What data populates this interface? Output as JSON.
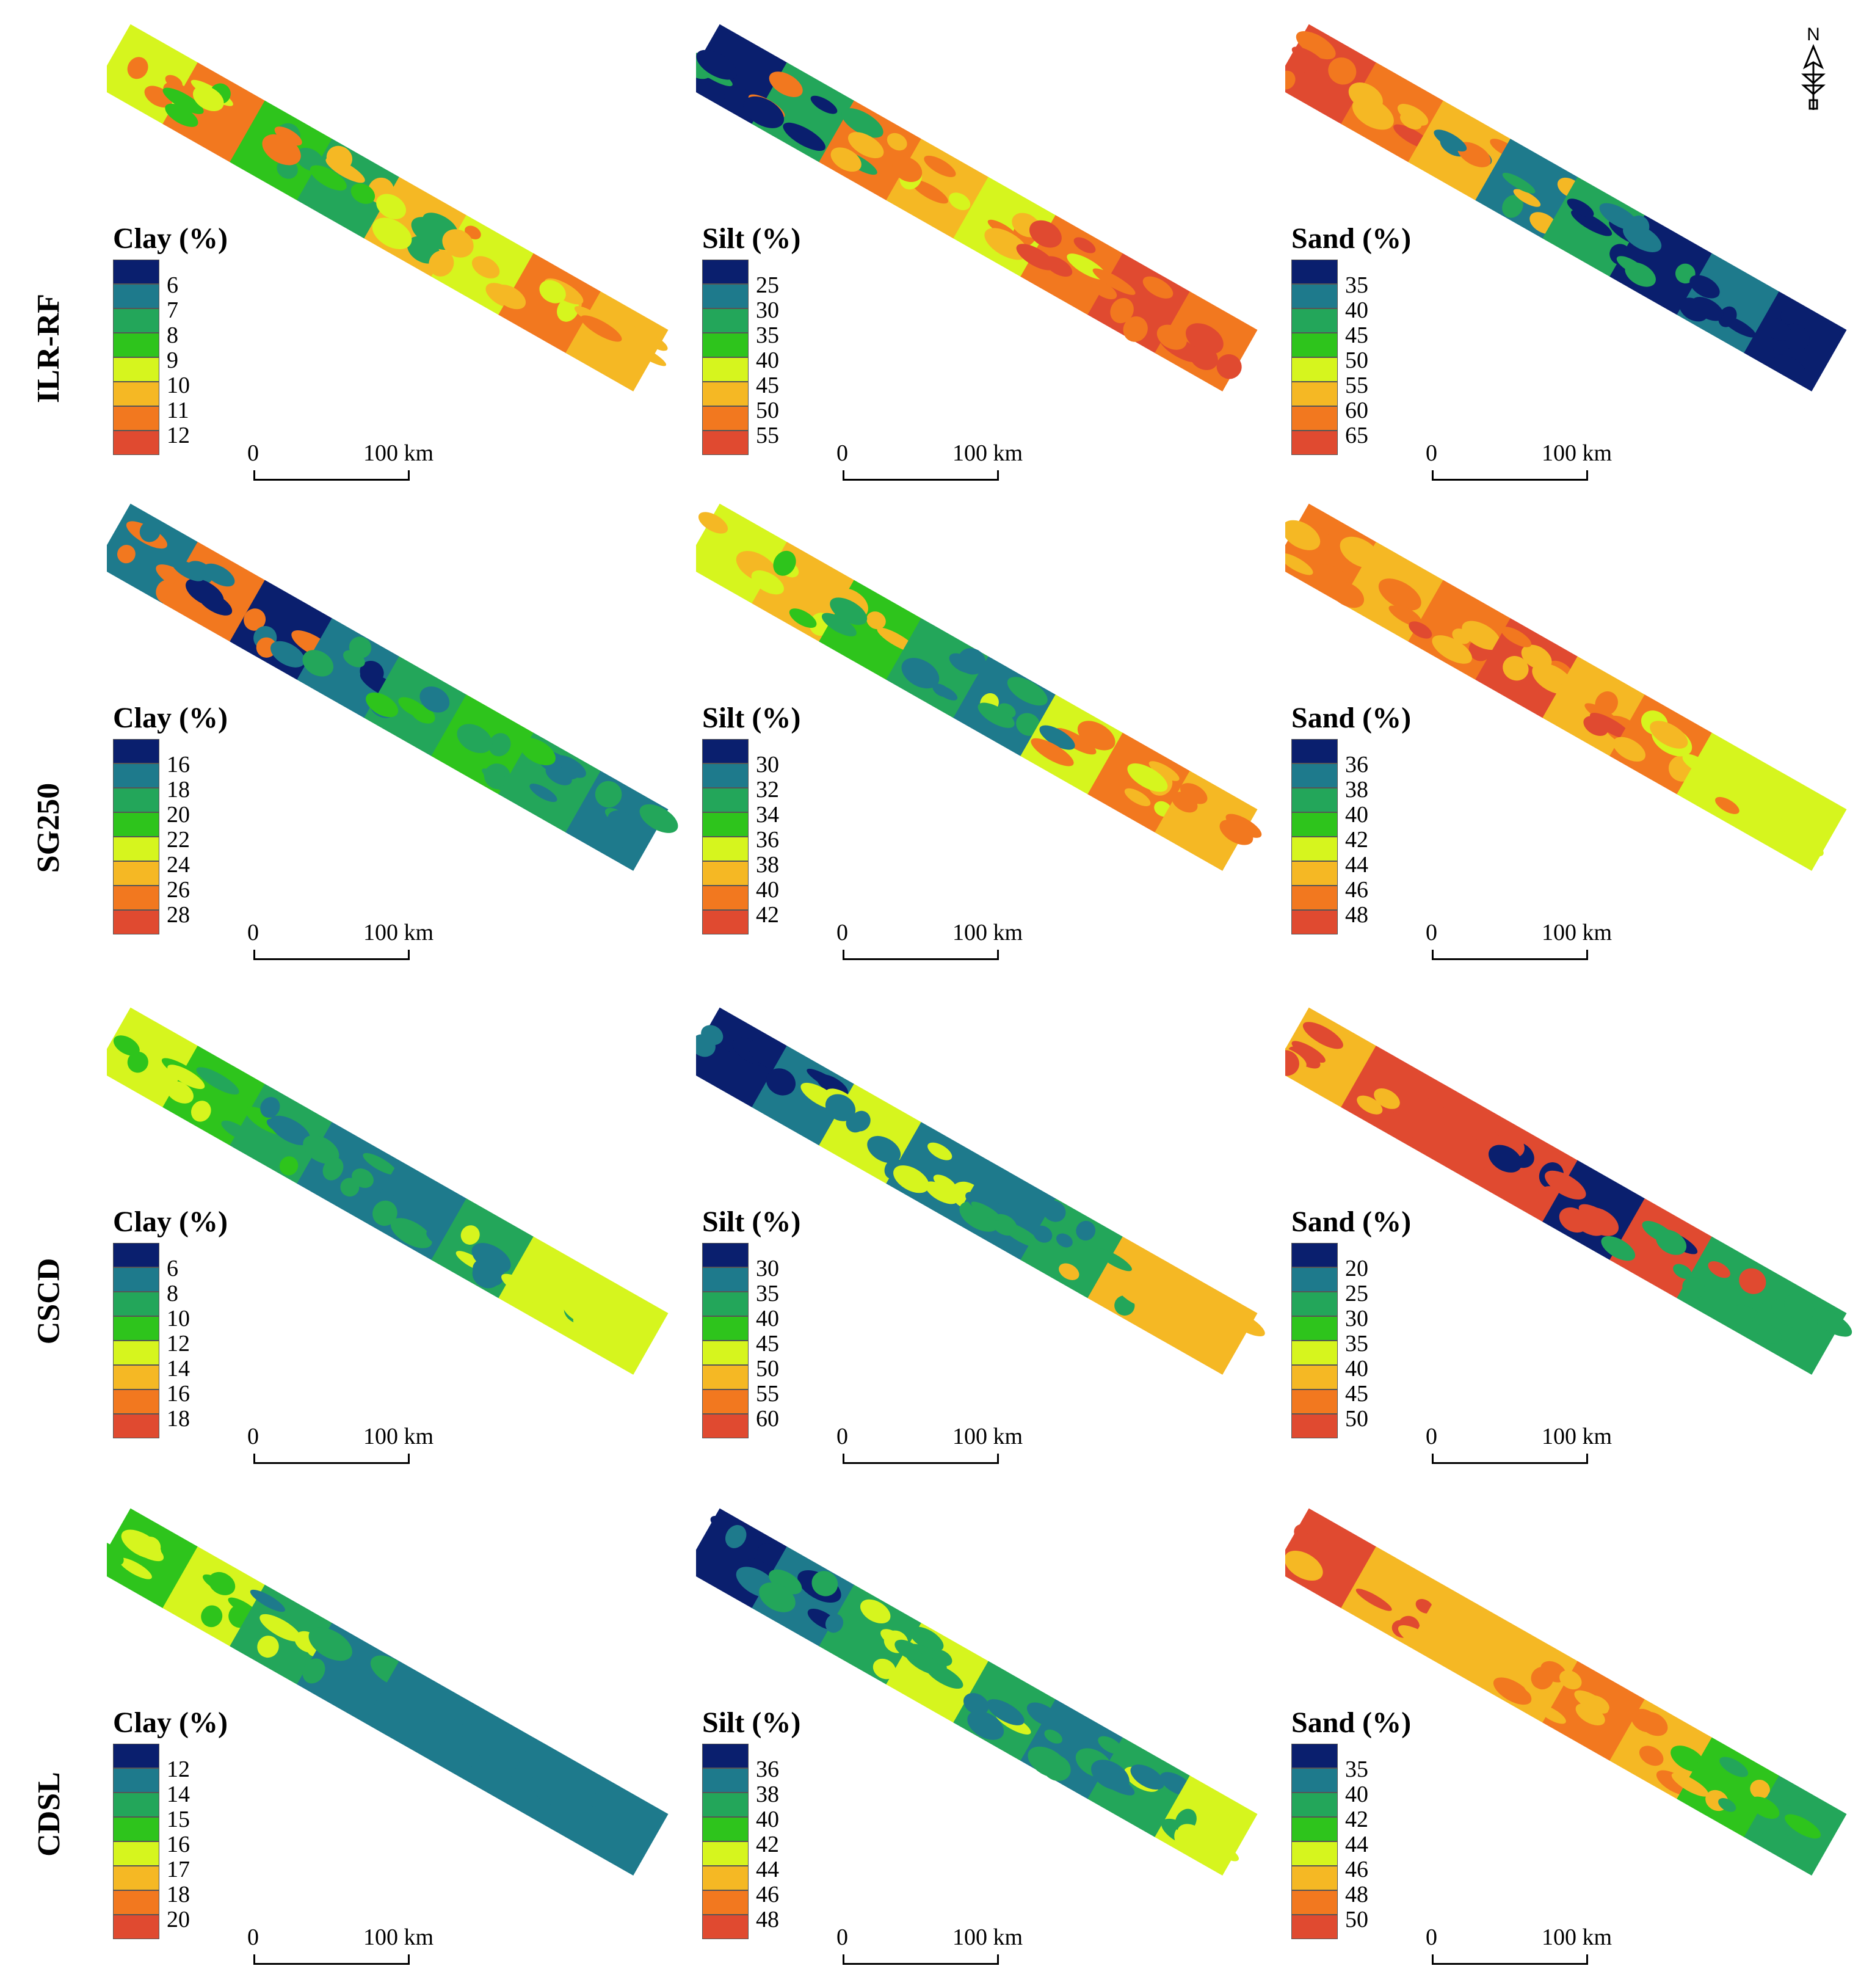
{
  "colors": [
    "#0a1f6e",
    "#1e7a8c",
    "#23a65a",
    "#2ec41c",
    "#d6f51e",
    "#f5b824",
    "#f2781f",
    "#e04a30"
  ],
  "scale_bar": {
    "zero": "0",
    "distance": "100 km"
  },
  "north_arrow": {
    "label": "N"
  },
  "rows": [
    {
      "label": "ILR-RF",
      "panels": [
        {
          "title": "Clay (%)",
          "values": [
            "6",
            "7",
            "8",
            "9",
            "10",
            "11",
            "12"
          ],
          "pattern": [
            4,
            6,
            3,
            2,
            5,
            4,
            6,
            5
          ]
        },
        {
          "title": "Silt (%)",
          "values": [
            "25",
            "30",
            "35",
            "40",
            "45",
            "50",
            "55"
          ],
          "pattern": [
            0,
            2,
            6,
            5,
            4,
            6,
            7,
            6
          ]
        },
        {
          "title": "Sand (%)",
          "values": [
            "35",
            "40",
            "45",
            "50",
            "55",
            "60",
            "65"
          ],
          "pattern": [
            7,
            6,
            5,
            1,
            2,
            0,
            1,
            0
          ]
        }
      ]
    },
    {
      "label": "SG250",
      "panels": [
        {
          "title": "Clay (%)",
          "values": [
            "16",
            "18",
            "20",
            "22",
            "24",
            "26",
            "28"
          ],
          "pattern": [
            1,
            6,
            0,
            1,
            2,
            3,
            2,
            1
          ]
        },
        {
          "title": "Silt (%)",
          "values": [
            "30",
            "32",
            "34",
            "36",
            "38",
            "40",
            "42"
          ],
          "pattern": [
            4,
            5,
            3,
            2,
            1,
            4,
            6,
            5
          ]
        },
        {
          "title": "Sand (%)",
          "values": [
            "36",
            "38",
            "40",
            "42",
            "44",
            "46",
            "48"
          ],
          "pattern": [
            6,
            5,
            6,
            7,
            5,
            6,
            4,
            4
          ]
        }
      ]
    },
    {
      "label": "CSCD",
      "panels": [
        {
          "title": "Clay (%)",
          "values": [
            "6",
            "8",
            "10",
            "12",
            "14",
            "16",
            "18"
          ],
          "pattern": [
            4,
            3,
            2,
            1,
            1,
            2,
            4,
            4
          ]
        },
        {
          "title": "Silt (%)",
          "values": [
            "30",
            "35",
            "40",
            "45",
            "50",
            "55",
            "60"
          ],
          "pattern": [
            0,
            1,
            4,
            1,
            1,
            2,
            5,
            5
          ]
        },
        {
          "title": "Sand (%)",
          "values": [
            "20",
            "25",
            "30",
            "35",
            "40",
            "45",
            "50"
          ],
          "pattern": [
            5,
            7,
            7,
            7,
            0,
            7,
            2,
            2
          ]
        }
      ]
    },
    {
      "label": "CDSL",
      "panels": [
        {
          "title": "Clay (%)",
          "values": [
            "12",
            "14",
            "15",
            "16",
            "17",
            "18",
            "20"
          ],
          "pattern": [
            3,
            4,
            2,
            1,
            1,
            1,
            1,
            1
          ]
        },
        {
          "title": "Silt (%)",
          "values": [
            "36",
            "38",
            "40",
            "42",
            "44",
            "46",
            "48"
          ],
          "pattern": [
            0,
            1,
            2,
            4,
            2,
            1,
            2,
            4
          ]
        },
        {
          "title": "Sand (%)",
          "values": [
            "35",
            "40",
            "42",
            "44",
            "46",
            "48",
            "50"
          ],
          "pattern": [
            7,
            5,
            5,
            5,
            6,
            5,
            3,
            2
          ]
        }
      ]
    }
  ]
}
